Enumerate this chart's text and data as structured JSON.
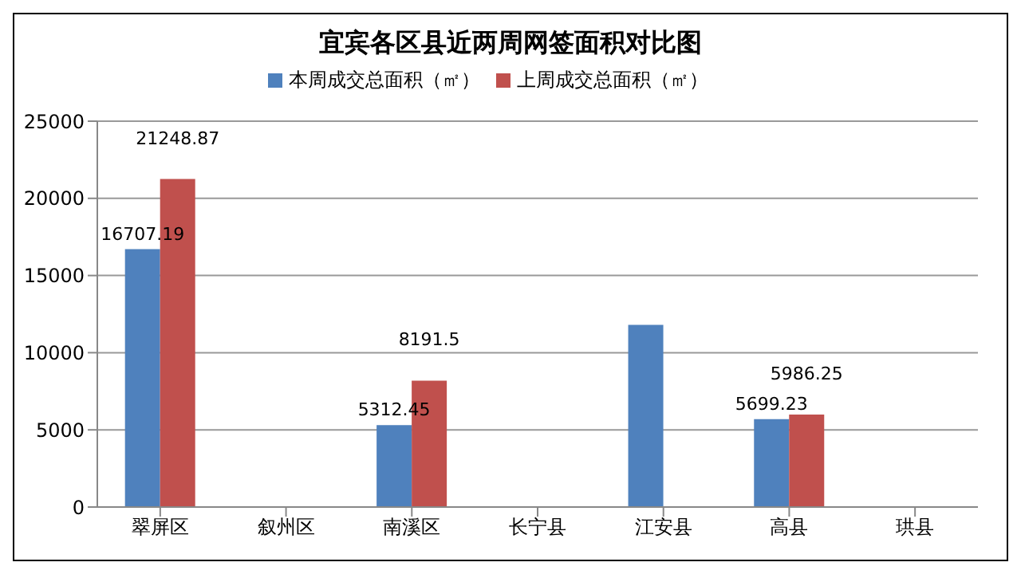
{
  "chart_data": {
    "type": "bar",
    "title": "宜宾各区县近两周网签面积对比图",
    "categories": [
      "翠屏区",
      "叙州区",
      "南溪区",
      "长宁县",
      "江安县",
      "高县",
      "珙县"
    ],
    "series": [
      {
        "name": "本周成交总面积（㎡）",
        "color": "#4f81bd",
        "values": [
          16707.19,
          null,
          5312.45,
          null,
          11800,
          5699.23,
          null
        ],
        "value_labels": [
          "16707.19",
          null,
          "5312.45",
          null,
          null,
          "5699.23",
          null
        ]
      },
      {
        "name": "上周成交总面积（㎡）",
        "color": "#c0504d",
        "values": [
          21248.87,
          null,
          8191.5,
          null,
          null,
          5986.25,
          null
        ],
        "value_labels": [
          "21248.87",
          null,
          "8191.5",
          null,
          null,
          "5986.25",
          null
        ]
      }
    ],
    "ylim": [
      0,
      25000
    ],
    "yticks": [
      0,
      5000,
      10000,
      15000,
      20000,
      25000
    ],
    "grid": "y",
    "legend": "top"
  }
}
